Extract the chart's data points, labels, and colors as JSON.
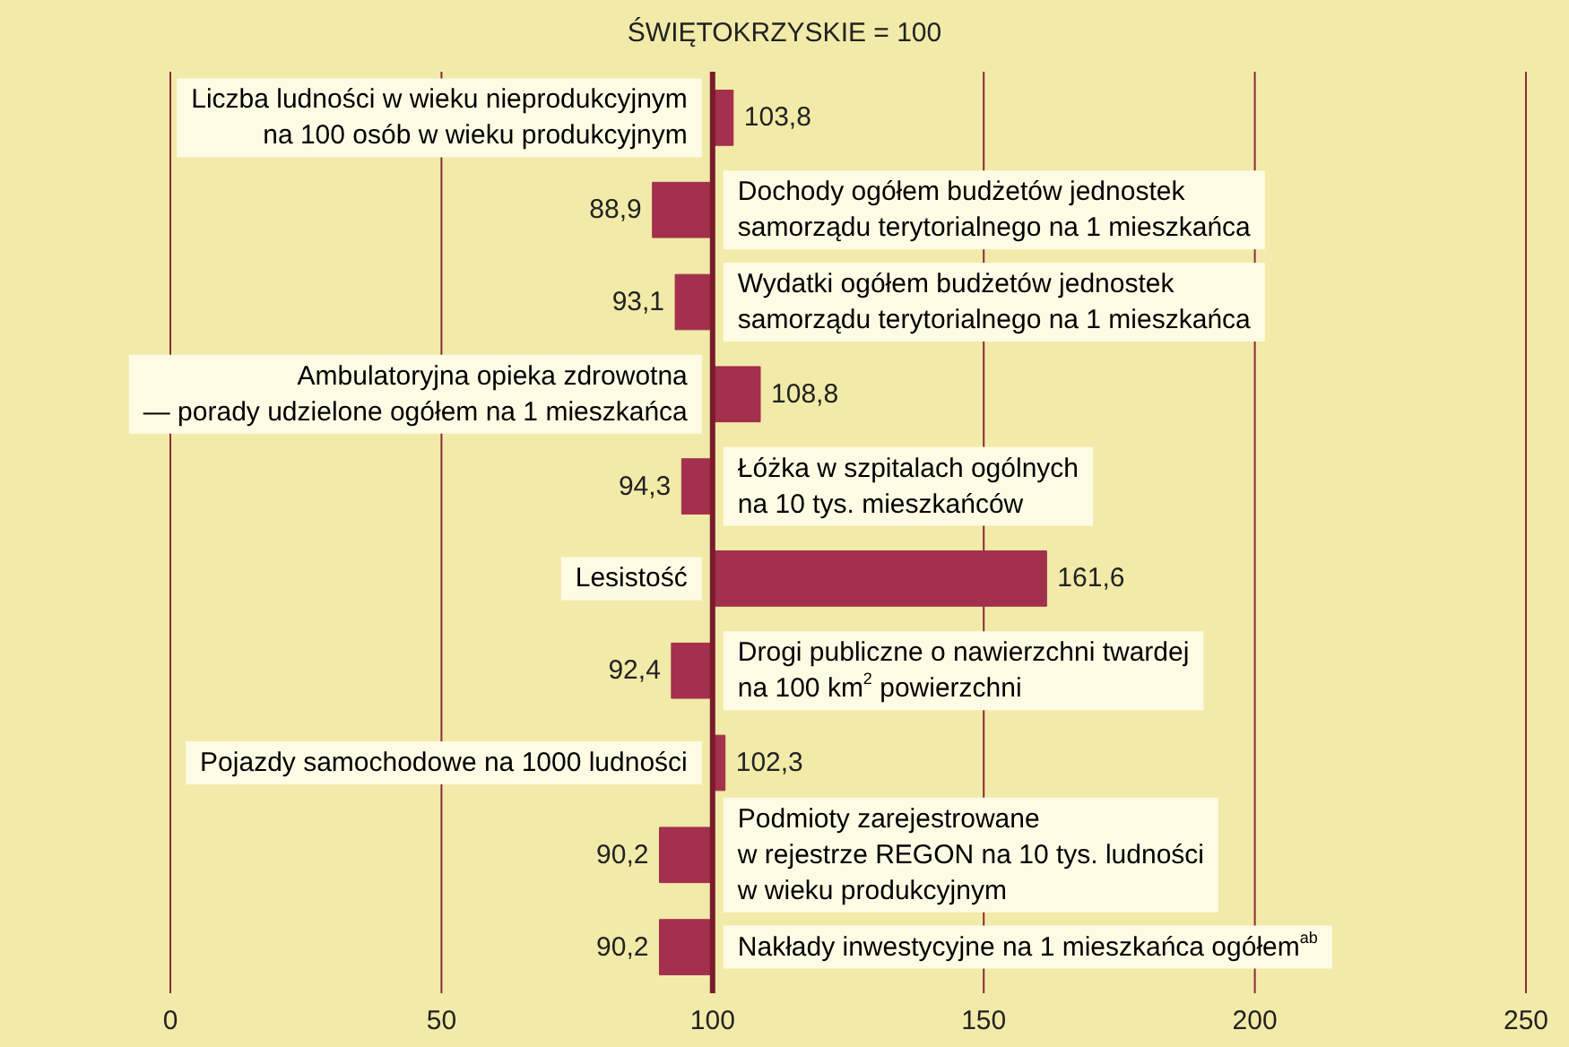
{
  "chart_data": {
    "type": "bar",
    "orientation": "horizontal",
    "title": "ŚWIĘTOKRZYSKIE = 100",
    "categories": [
      "Liczba ludności w wieku nieprodukcyjnym\nna 100 osób w wieku produkcyjnym",
      "Dochody ogółem budżetów jednostek\nsamorządu terytorialnego na 1 mieszkańca",
      "Wydatki ogółem budżetów jednostek\nsamorządu terytorialnego na 1 mieszkańca",
      "Ambulatoryjna opieka zdrowotna\n— porady udzielone ogółem na 1 mieszkańca",
      "Łóżka w szpitalach ogólnych\nna 10 tys. mieszkańców",
      "Lesistość",
      "Drogi publiczne o nawierzchni twardej\nna 100 km$^{2}$ powierzchni",
      "Pojazdy samochodowe na 1000 ludności",
      "Podmioty zarejestrowane\nw rejestrze REGON na 10 tys. ludności\nw wieku produkcyjnym",
      "Nakłady inwestycyjne na 1 mieszkańca ogółem$^{ab}$"
    ],
    "base": [
      100,
      100,
      100,
      100,
      100,
      100,
      100,
      100,
      100,
      100
    ],
    "values": [
      3.8,
      -11.1,
      -6.9,
      8.8,
      -5.7,
      61.6,
      -7.6,
      2.3,
      -9.8,
      -9.8
    ],
    "value_labels": [
      "103,8",
      "88,9",
      "93,1",
      "108,8",
      "94,3",
      "161,6",
      "92,4",
      "102,3",
      "90,2",
      "90,2"
    ],
    "color": "#a3304d",
    "xlim": [
      0,
      250
    ],
    "xticks": [
      0,
      50,
      100,
      150,
      200,
      250
    ],
    "grid": "x"
  }
}
